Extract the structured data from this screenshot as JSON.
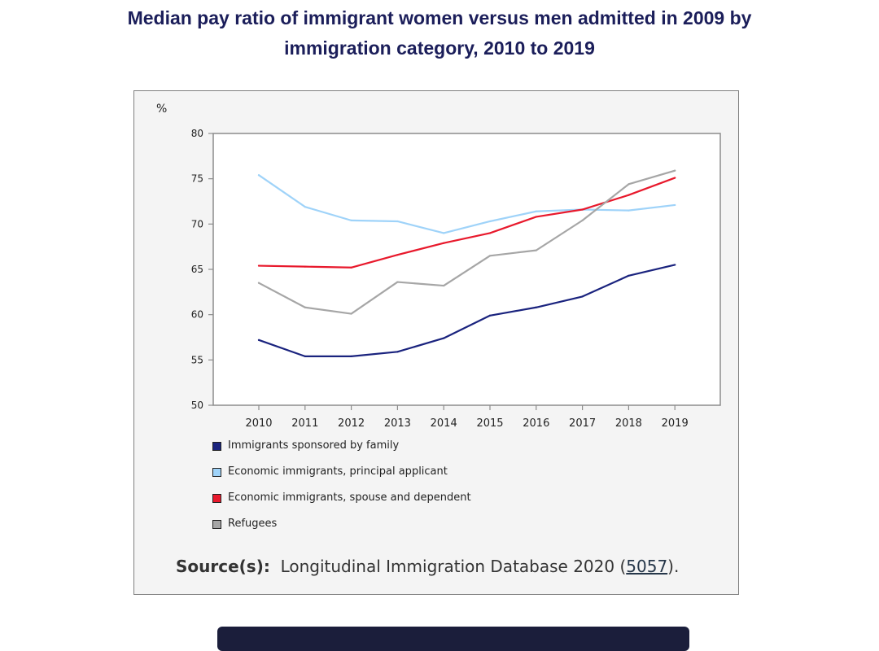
{
  "title": "Median pay ratio of immigrant women versus men admitted in 2009 by immigration category, 2010 to 2019",
  "chart_data": {
    "type": "line",
    "title": "Median pay ratio of immigrant women versus men admitted in 2009 by immigration category, 2010 to 2019",
    "ylabel": "%",
    "xlabel": "",
    "ylim": [
      50,
      80
    ],
    "yticks": [
      50,
      55,
      60,
      65,
      70,
      75,
      80
    ],
    "categories": [
      "2010",
      "2011",
      "2012",
      "2013",
      "2014",
      "2015",
      "2016",
      "2017",
      "2018",
      "2019"
    ],
    "grid": false,
    "legend_position": "bottom-left",
    "series": [
      {
        "name": "Immigrants sponsored by family",
        "color": "#1a237e",
        "values": [
          57.2,
          55.4,
          55.4,
          55.9,
          57.4,
          59.9,
          60.8,
          62.0,
          64.3,
          65.5
        ]
      },
      {
        "name": "Economic immigrants, principal applicant",
        "color": "#9fd3f9",
        "values": [
          75.4,
          71.9,
          70.4,
          70.3,
          69.0,
          70.3,
          71.4,
          71.6,
          71.5,
          72.1
        ]
      },
      {
        "name": "Economic immigrants, spouse and dependent",
        "color": "#e8192c",
        "values": [
          65.4,
          65.3,
          65.2,
          66.6,
          67.9,
          69.0,
          70.8,
          71.6,
          73.2,
          75.1
        ]
      },
      {
        "name": "Refugees",
        "color": "#a6a6a6",
        "values": [
          63.5,
          60.8,
          60.1,
          63.6,
          63.2,
          66.5,
          67.1,
          70.4,
          74.4,
          75.9
        ]
      }
    ]
  },
  "source": {
    "label": "Source(s):",
    "text": "Longitudinal Immigration Database 2020 (",
    "link": "5057",
    "end": ")."
  },
  "colors": {
    "title": "#1b1e5a",
    "panel_bg": "#f4f4f4",
    "bottom_bar": "#1b1e3b"
  }
}
